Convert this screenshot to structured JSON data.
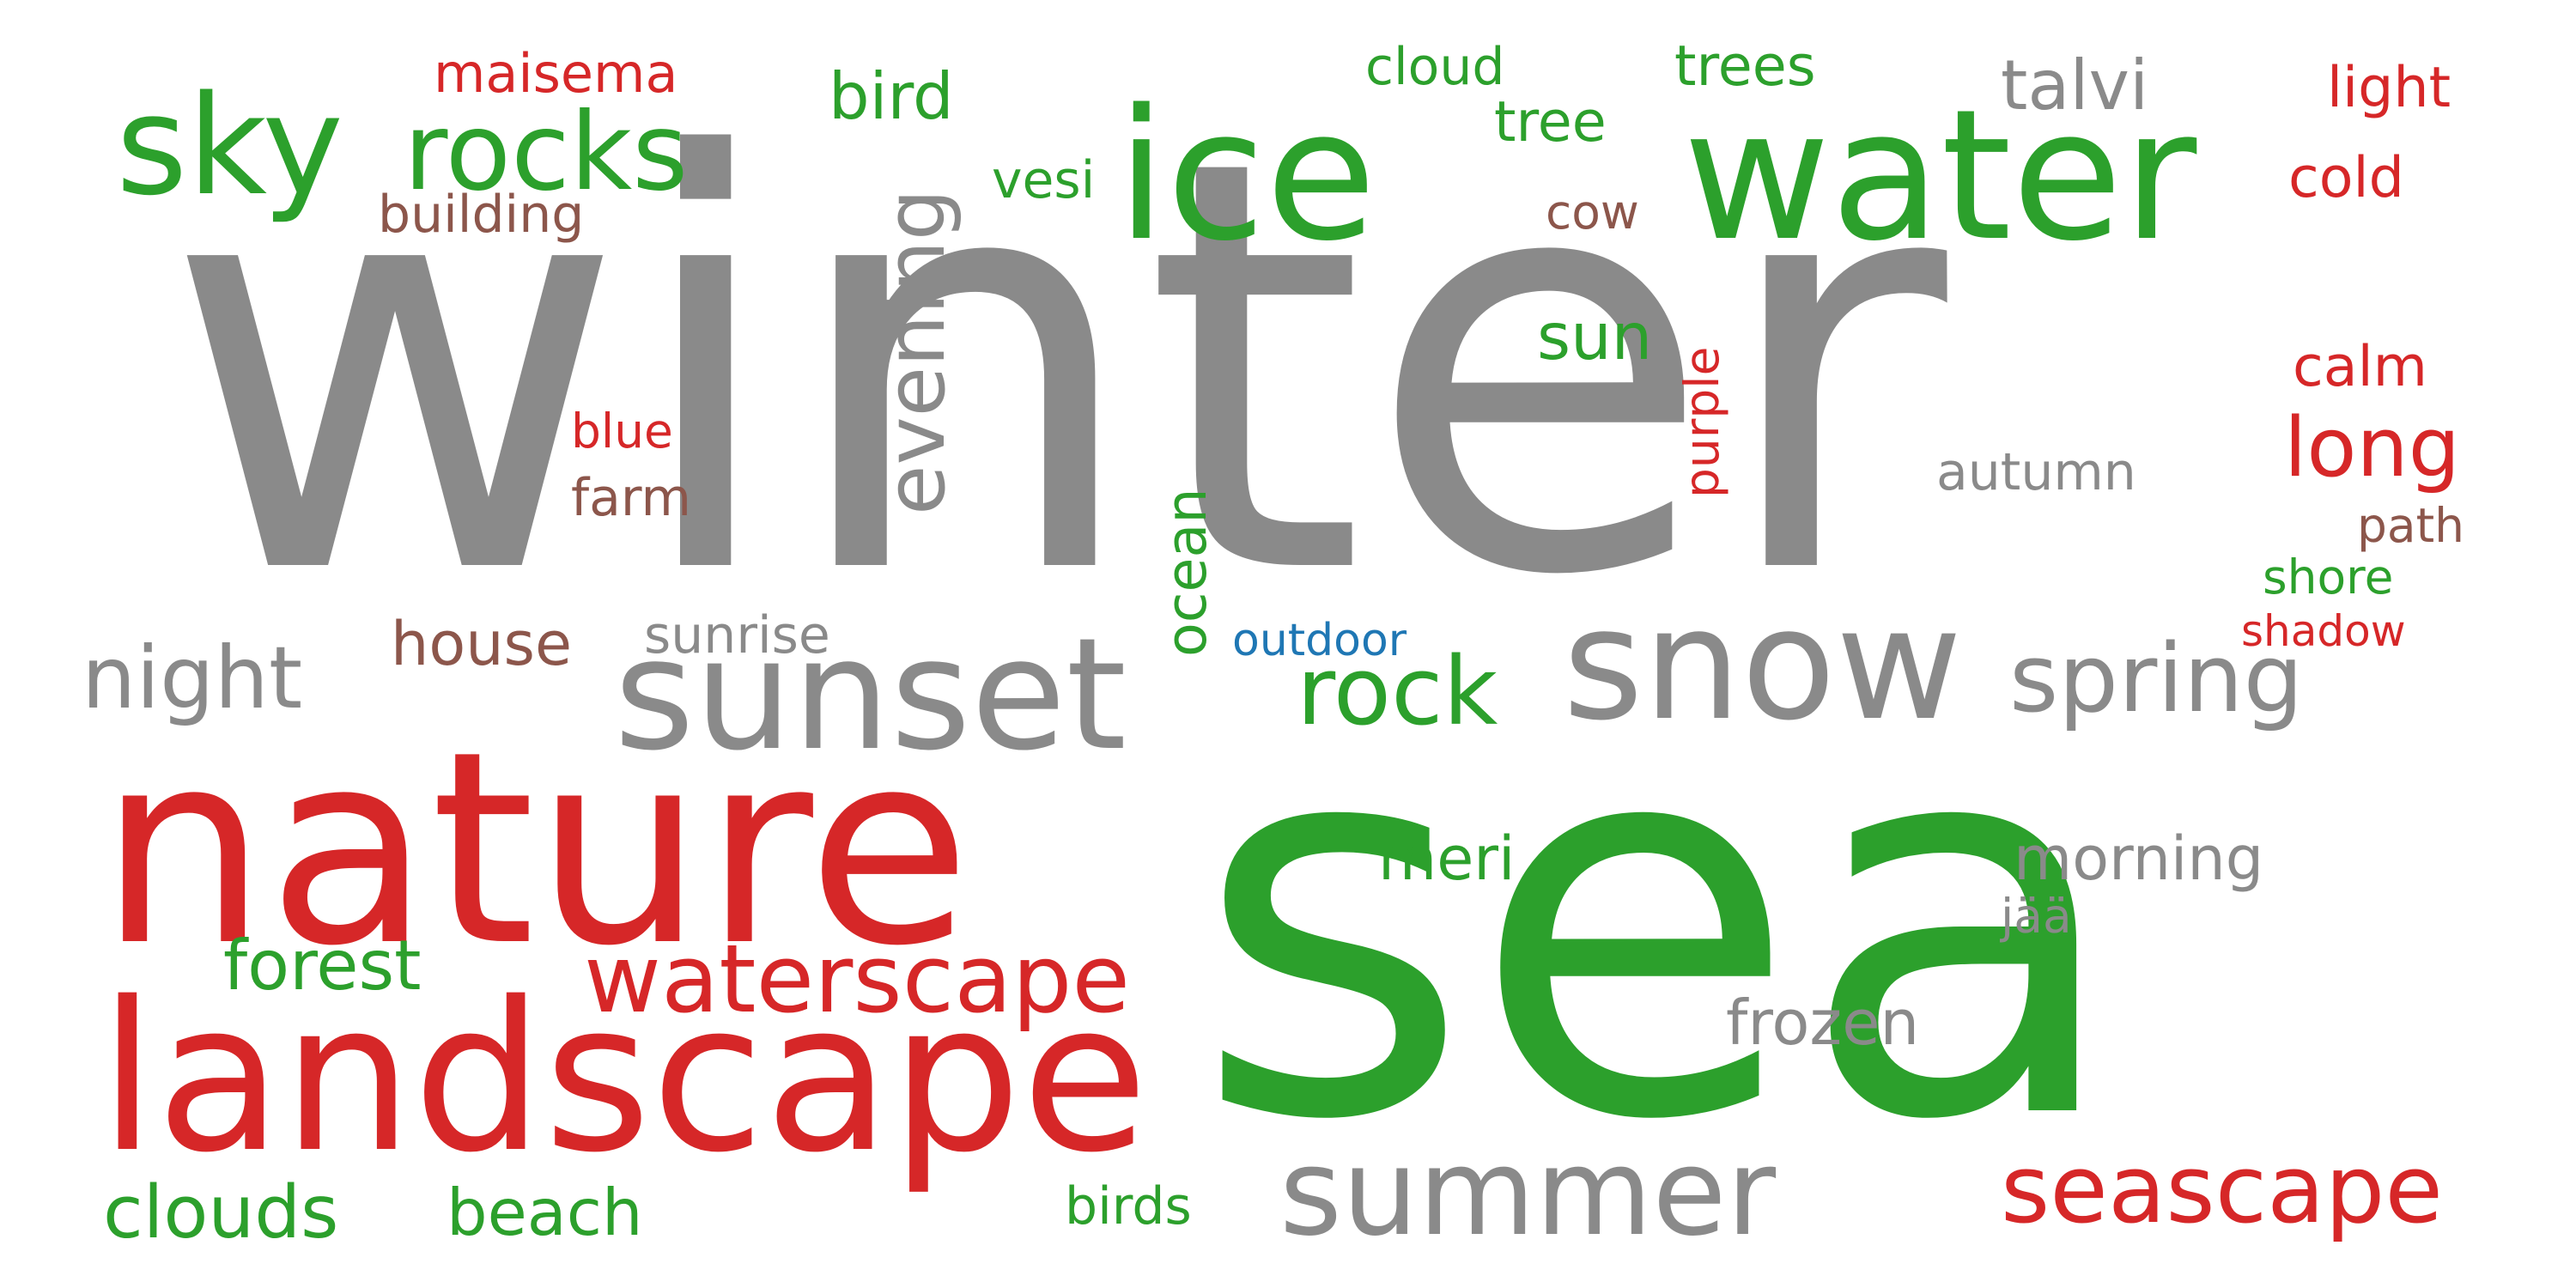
{
  "colors": {
    "gray": "#8a8a8a",
    "green": "#2ca02c",
    "red": "#d62728",
    "brown": "#8c564b",
    "blue": "#1f77b4"
  },
  "words": {
    "winter": "winter",
    "sea": "sea",
    "nature": "nature",
    "landscape": "landscape",
    "water": "water",
    "ice": "ice",
    "snow": "snow",
    "sunset": "sunset",
    "sky": "sky",
    "rocks": "rocks",
    "summer": "summer",
    "seascape": "seascape",
    "waterscape": "waterscape",
    "spring": "spring",
    "night": "night",
    "rock": "rock",
    "evening": "evening",
    "long": "long",
    "forest": "forest",
    "clouds": "clouds",
    "beach": "beach",
    "frozen": "frozen",
    "morning": "morning",
    "talvi": "talvi",
    "bird": "bird",
    "trees": "trees",
    "tree": "tree",
    "cloud": "cloud",
    "maisema": "maisema",
    "building": "building",
    "vesi": "vesi",
    "light": "light",
    "cold": "cold",
    "cow": "cow",
    "sun": "sun",
    "purple": "purple",
    "calm": "calm",
    "blue": "blue",
    "farm": "farm",
    "autumn": "autumn",
    "path": "path",
    "shore": "shore",
    "shadow": "shadow",
    "house": "house",
    "sunrise": "sunrise",
    "outdoor": "outdoor",
    "ocean": "ocean",
    "meri": "meri",
    "jaa": "jää",
    "birds": "birds"
  }
}
